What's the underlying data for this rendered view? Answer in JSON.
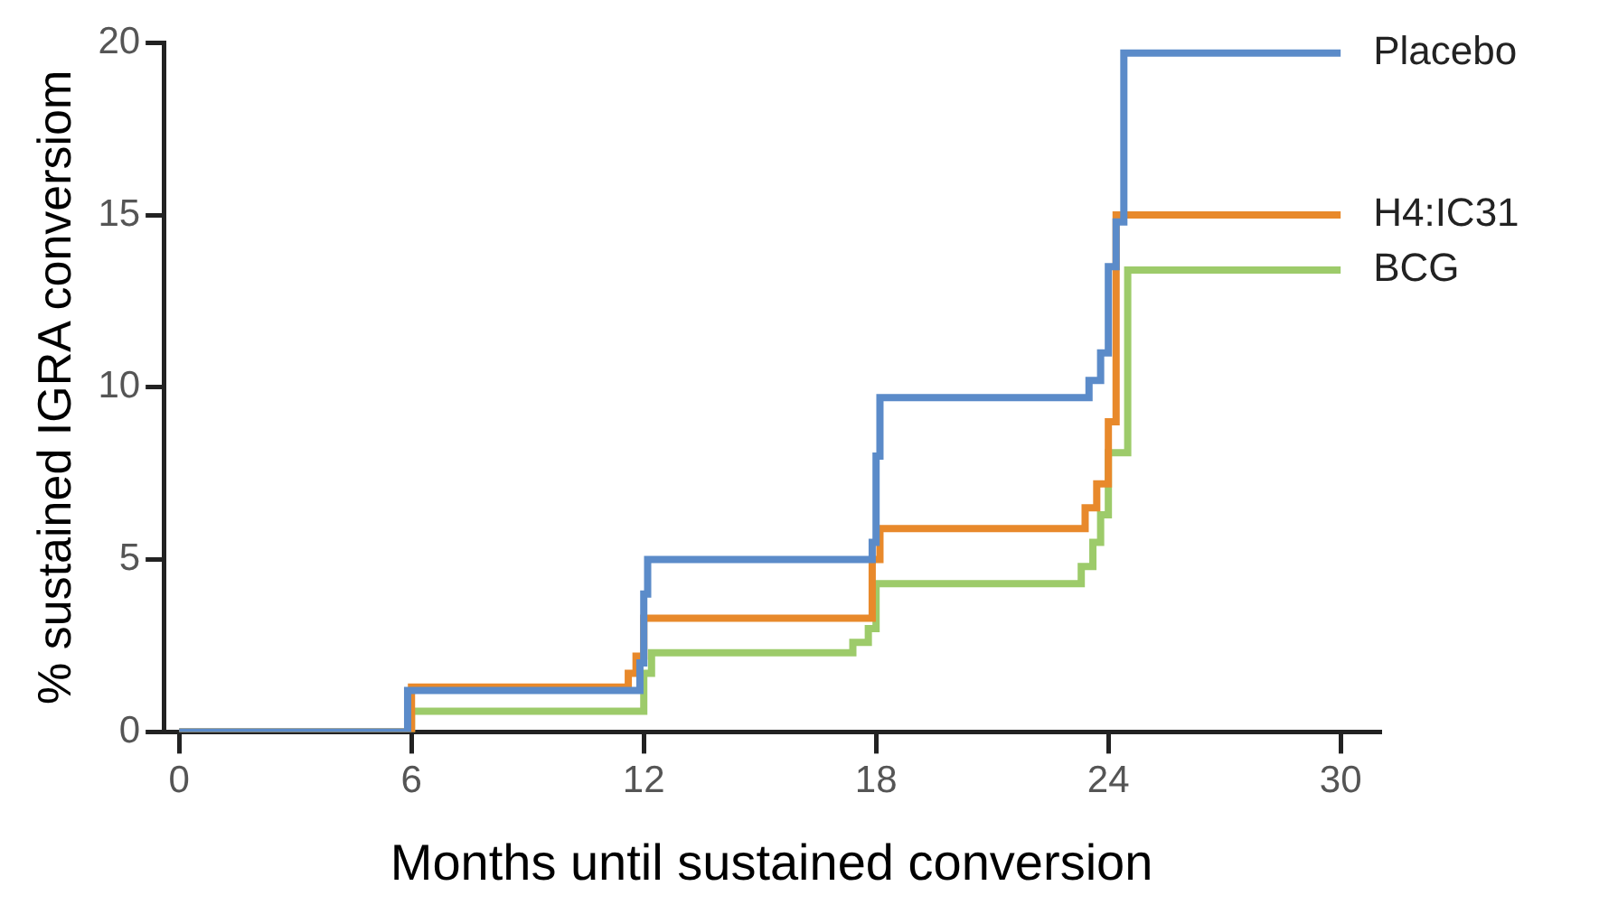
{
  "chart_data": {
    "type": "step",
    "xlabel": "Months until sustained conversion",
    "ylabel": "% sustained IGRA conversiom",
    "xlim": [
      -0.4,
      31
    ],
    "ylim": [
      0,
      20
    ],
    "xticks": [
      0,
      6,
      12,
      18,
      24,
      30
    ],
    "yticks": [
      0,
      5,
      10,
      15,
      20
    ],
    "grid": false,
    "legend": false,
    "marker": "none",
    "line_style": "solid",
    "series": [
      {
        "name": "Placebo",
        "color": "#5b8bc9",
        "x": [
          0,
          5.9,
          11.9,
          12.0,
          12.1,
          17.9,
          18.0,
          18.1,
          23.5,
          23.8,
          24.0,
          24.2,
          24.4,
          30
        ],
        "values": [
          0,
          1.2,
          2.0,
          4.0,
          5.0,
          5.5,
          8.0,
          9.7,
          10.2,
          11.0,
          13.5,
          14.8,
          19.7,
          19.7
        ]
      },
      {
        "name": "H4:IC31",
        "color": "#e8892b",
        "x": [
          0,
          6.0,
          11.6,
          11.8,
          12.0,
          17.9,
          18.1,
          23.4,
          23.7,
          24.0,
          24.2,
          30
        ],
        "values": [
          0,
          1.3,
          1.7,
          2.2,
          3.3,
          5.0,
          5.9,
          6.5,
          7.2,
          9.0,
          15.0,
          15.0
        ]
      },
      {
        "name": "BCG",
        "color": "#9dcb6a",
        "x": [
          0,
          6.0,
          12.0,
          12.2,
          17.4,
          17.8,
          18.0,
          23.3,
          23.6,
          23.8,
          24.0,
          24.5,
          30
        ],
        "values": [
          0,
          0.6,
          1.7,
          2.3,
          2.6,
          3.0,
          4.3,
          4.8,
          5.5,
          6.3,
          8.1,
          13.4,
          13.4
        ]
      }
    ]
  }
}
